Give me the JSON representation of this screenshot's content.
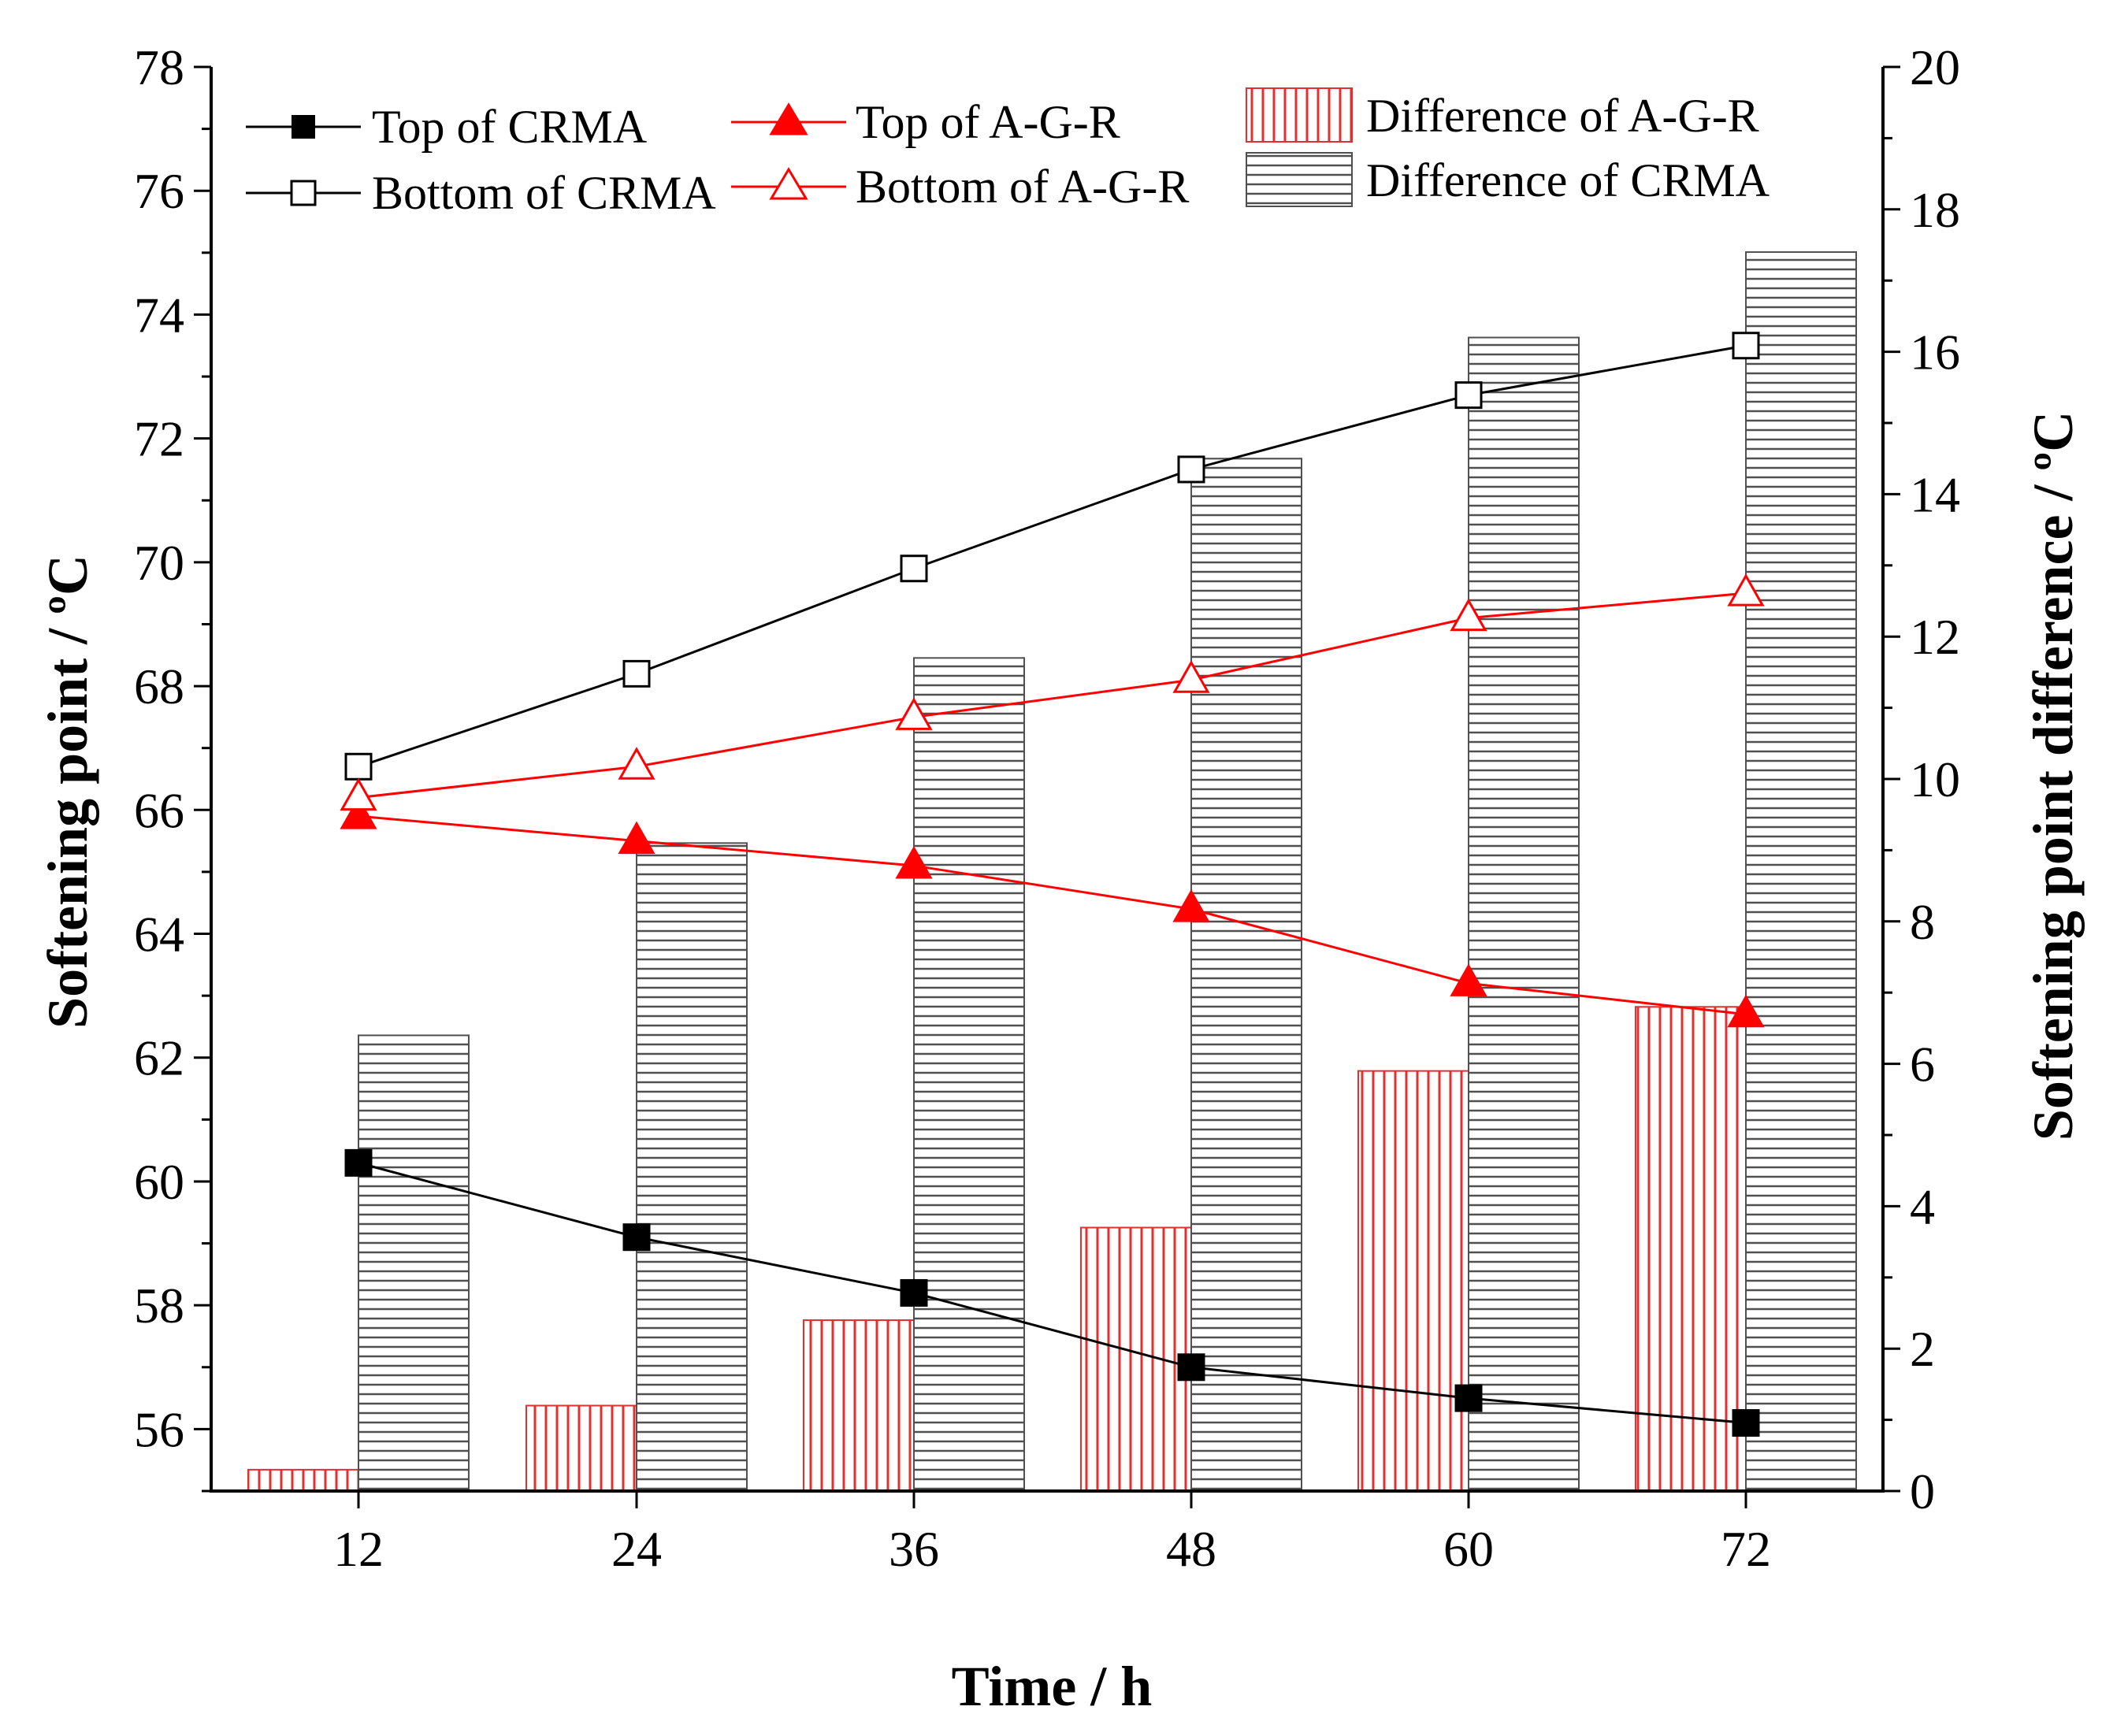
{
  "chart_data": {
    "type": "bar",
    "title": "",
    "xlabel": "Time / h",
    "ylabel": "Softening point / ºC",
    "y2label": "Softening point difference / ºC",
    "categories": [
      "12",
      "24",
      "36",
      "48",
      "60",
      "72"
    ],
    "ylim": [
      55,
      78
    ],
    "y2lim": [
      0,
      20
    ],
    "yticks": [
      "56",
      "58",
      "60",
      "62",
      "64",
      "66",
      "68",
      "70",
      "72",
      "74",
      "76",
      "78"
    ],
    "y2ticks": [
      "0",
      "2",
      "4",
      "6",
      "8",
      "10",
      "12",
      "14",
      "16",
      "18",
      "20"
    ],
    "legend_position": "top",
    "colors": {
      "black": "#000000",
      "red": "#ff0000",
      "bar_red": "#e03030",
      "bar_gray": "#505050"
    },
    "line_series": [
      {
        "name": "Top of CRMA",
        "axis": "left",
        "marker": "filled-square",
        "color": "#000000",
        "values": [
          60.3,
          59.1,
          58.2,
          57.0,
          56.5,
          56.1
        ]
      },
      {
        "name": "Bottom of CRMA",
        "axis": "left",
        "marker": "open-square",
        "color": "#000000",
        "values": [
          66.7,
          68.2,
          69.9,
          71.5,
          72.7,
          73.5
        ]
      },
      {
        "name": "Top of A-G-R",
        "axis": "left",
        "marker": "filled-triangle",
        "color": "#ff0000",
        "values": [
          65.9,
          65.5,
          65.1,
          64.4,
          63.2,
          62.7
        ]
      },
      {
        "name": "Bottom of A-G-R",
        "axis": "left",
        "marker": "open-triangle",
        "color": "#ff0000",
        "values": [
          66.2,
          66.7,
          67.5,
          68.1,
          69.1,
          69.5
        ]
      }
    ],
    "bar_series": [
      {
        "name": "Difference of A-G-R",
        "axis": "right",
        "hatch": "vertical",
        "color": "#e03030",
        "values": [
          0.3,
          1.2,
          2.4,
          3.7,
          5.9,
          6.8
        ]
      },
      {
        "name": "Difference of CRMA",
        "axis": "right",
        "hatch": "horizontal",
        "color": "#505050",
        "values": [
          6.4,
          9.1,
          11.7,
          14.5,
          16.2,
          17.4
        ]
      }
    ]
  }
}
